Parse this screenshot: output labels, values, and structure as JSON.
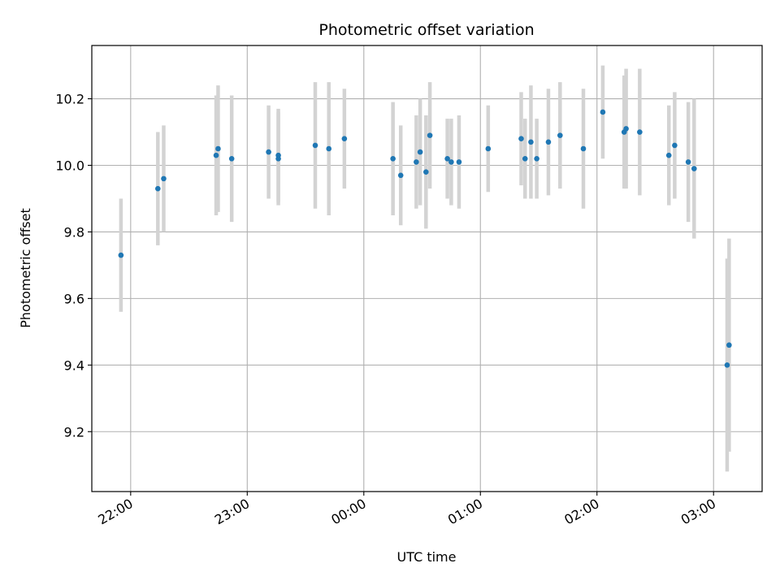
{
  "chart_data": {
    "type": "scatter",
    "title": "Photometric offset variation",
    "xlabel": "UTC time",
    "ylabel": "Photometric offset",
    "x_unit": "UTC time of day (hh:mm), timeline crossing midnight",
    "xlim": [
      "21:40",
      "03:25"
    ],
    "ylim": [
      9.02,
      10.36
    ],
    "x_ticks": [
      "22:00",
      "23:00",
      "00:00",
      "01:00",
      "02:00",
      "03:00"
    ],
    "y_ticks": [
      9.2,
      9.4,
      9.6,
      9.8,
      10.0,
      10.2
    ],
    "y_tick_labels": [
      "9.2",
      "9.4",
      "9.6",
      "9.8",
      "10.0",
      "10.2"
    ],
    "grid": true,
    "point_color": "#1f77b4",
    "errorbar_color": "#d3d3d3",
    "series": [
      {
        "points": [
          {
            "x": "21:55",
            "y": 9.73,
            "err": 0.17
          },
          {
            "x": "22:14",
            "y": 9.93,
            "err": 0.17
          },
          {
            "x": "22:17",
            "y": 9.96,
            "err": 0.16
          },
          {
            "x": "22:44",
            "y": 10.03,
            "err": 0.18
          },
          {
            "x": "22:45",
            "y": 10.05,
            "err": 0.19
          },
          {
            "x": "22:52",
            "y": 10.02,
            "err": 0.19
          },
          {
            "x": "23:11",
            "y": 10.04,
            "err": 0.14
          },
          {
            "x": "23:16",
            "y": 10.03,
            "err": 0.14
          },
          {
            "x": "23:16",
            "y": 10.02,
            "err": 0.14
          },
          {
            "x": "23:35",
            "y": 10.06,
            "err": 0.19
          },
          {
            "x": "23:42",
            "y": 10.05,
            "err": 0.2
          },
          {
            "x": "23:50",
            "y": 10.08,
            "err": 0.15
          },
          {
            "x": "00:15",
            "y": 10.02,
            "err": 0.17
          },
          {
            "x": "00:19",
            "y": 9.97,
            "err": 0.15
          },
          {
            "x": "00:27",
            "y": 10.01,
            "err": 0.14
          },
          {
            "x": "00:29",
            "y": 10.04,
            "err": 0.16
          },
          {
            "x": "00:32",
            "y": 9.98,
            "err": 0.17
          },
          {
            "x": "00:34",
            "y": 10.09,
            "err": 0.16
          },
          {
            "x": "00:43",
            "y": 10.02,
            "err": 0.12
          },
          {
            "x": "00:45",
            "y": 10.01,
            "err": 0.13
          },
          {
            "x": "00:49",
            "y": 10.01,
            "err": 0.14
          },
          {
            "x": "01:04",
            "y": 10.05,
            "err": 0.13
          },
          {
            "x": "01:21",
            "y": 10.08,
            "err": 0.14
          },
          {
            "x": "01:23",
            "y": 10.02,
            "err": 0.12
          },
          {
            "x": "01:26",
            "y": 10.07,
            "err": 0.17
          },
          {
            "x": "01:29",
            "y": 10.02,
            "err": 0.12
          },
          {
            "x": "01:35",
            "y": 10.07,
            "err": 0.16
          },
          {
            "x": "01:41",
            "y": 10.09,
            "err": 0.16
          },
          {
            "x": "01:53",
            "y": 10.05,
            "err": 0.18
          },
          {
            "x": "02:03",
            "y": 10.16,
            "err": 0.14
          },
          {
            "x": "02:14",
            "y": 10.1,
            "err": 0.17
          },
          {
            "x": "02:15",
            "y": 10.11,
            "err": 0.18
          },
          {
            "x": "02:22",
            "y": 10.1,
            "err": 0.19
          },
          {
            "x": "02:37",
            "y": 10.03,
            "err": 0.15
          },
          {
            "x": "02:40",
            "y": 10.06,
            "err": 0.16
          },
          {
            "x": "02:47",
            "y": 10.01,
            "err": 0.18
          },
          {
            "x": "02:50",
            "y": 9.99,
            "err": 0.21
          },
          {
            "x": "03:07",
            "y": 9.4,
            "err": 0.32
          },
          {
            "x": "03:08",
            "y": 9.46,
            "err": 0.32
          }
        ]
      }
    ]
  }
}
